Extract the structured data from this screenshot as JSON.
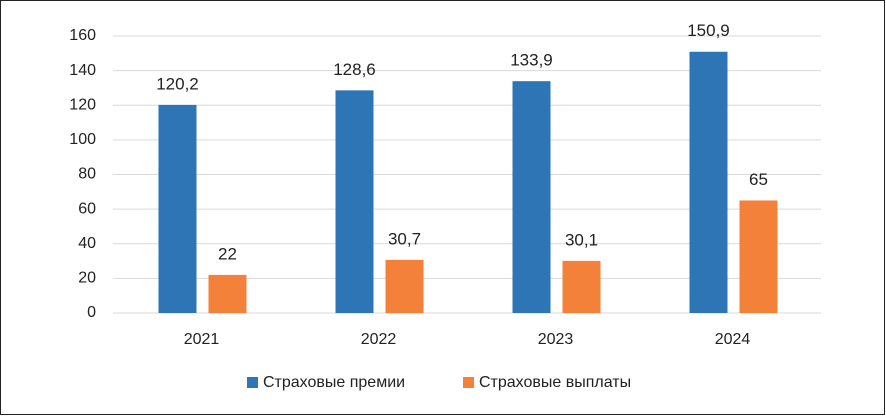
{
  "chart_data": {
    "type": "bar",
    "categories": [
      "2021",
      "2022",
      "2023",
      "2024"
    ],
    "series": [
      {
        "name": "Страховые премии",
        "color": "#2e75b6",
        "values": [
          120.2,
          128.6,
          133.9,
          150.9
        ],
        "value_labels": [
          "120,2",
          "128,6",
          "133,9",
          "150,9"
        ]
      },
      {
        "name": "Страховые выплаты",
        "color": "#f4813a",
        "values": [
          22,
          30.7,
          30.1,
          65
        ],
        "value_labels": [
          "22",
          "30,7",
          "30,1",
          "65"
        ]
      }
    ],
    "ylim": [
      0,
      160
    ],
    "yticks": [
      0,
      20,
      40,
      60,
      80,
      100,
      120,
      140,
      160
    ],
    "grid": true,
    "legend": "bottom"
  }
}
